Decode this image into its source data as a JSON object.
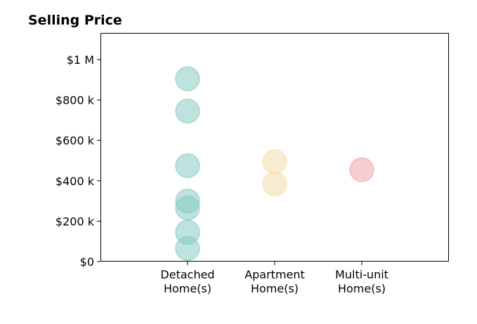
{
  "chart_data": {
    "type": "scatter",
    "title": "Selling Price",
    "xlabel": "",
    "ylabel": "",
    "categories": [
      [
        "Detached",
        "Home(s)"
      ],
      [
        "Apartment",
        "Home(s)"
      ],
      [
        "Multi-unit",
        "Home(s)"
      ]
    ],
    "xlim": [
      -1,
      3
    ],
    "ylim": [
      0,
      1000000
    ],
    "y_ticks": [
      {
        "value": 0,
        "label": "$0"
      },
      {
        "value": 200000,
        "label": "$200 k"
      },
      {
        "value": 400000,
        "label": "$400 k"
      },
      {
        "value": 600000,
        "label": "$600 k"
      },
      {
        "value": 800000,
        "label": "$800 k"
      },
      {
        "value": 1000000,
        "label": "$1 M"
      }
    ],
    "grid": false,
    "series": [
      {
        "category_index": 0,
        "color": "#7ec8bf",
        "values": [
          905000,
          745000,
          475000,
          300000,
          265000,
          145000,
          65000
        ]
      },
      {
        "category_index": 1,
        "color": "#f4dca4",
        "values": [
          495000,
          385000
        ]
      },
      {
        "category_index": 2,
        "color": "#ef9aa5",
        "values": [
          455000
        ]
      }
    ]
  }
}
